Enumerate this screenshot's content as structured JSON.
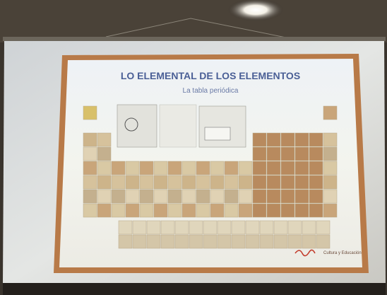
{
  "slide": {
    "title": "LO ELEMENTAL DE LOS ELEMENTOS",
    "subtitle": "La tabla periódica",
    "footer": "Cultura y Educación"
  }
}
